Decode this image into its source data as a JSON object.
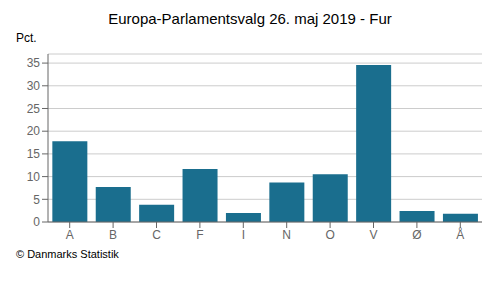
{
  "chart_data": {
    "type": "bar",
    "title": "Europa-Parlamentsvalg 26. maj 2019 - Fur",
    "ylabel": "Pct.",
    "annotations": [
      "© Danmarks Statistik"
    ],
    "categories": [
      "A",
      "B",
      "C",
      "F",
      "I",
      "N",
      "O",
      "V",
      "Ø",
      "Å"
    ],
    "values": [
      17.8,
      7.7,
      3.8,
      11.7,
      2.0,
      8.7,
      10.5,
      34.6,
      2.4,
      1.8
    ],
    "color": "#1a6e8e",
    "ylim": [
      0,
      37
    ],
    "yticks": [
      0,
      5,
      10,
      15,
      20,
      25,
      30,
      35
    ],
    "grid": true
  }
}
